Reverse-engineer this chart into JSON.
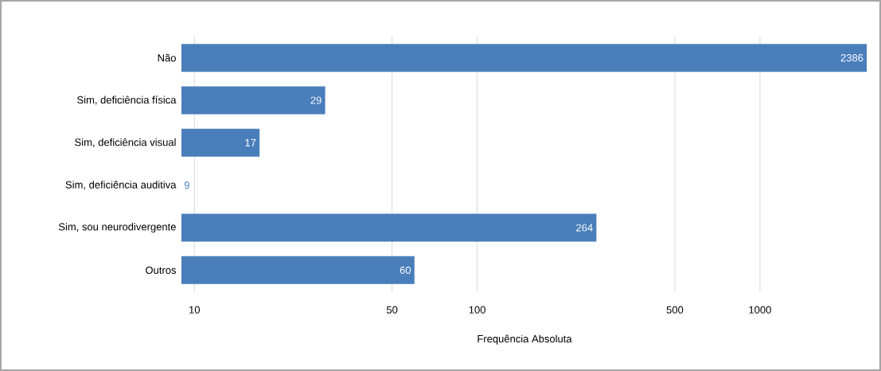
{
  "chart_data": {
    "type": "bar",
    "orientation": "horizontal",
    "log": "x",
    "xlabel": "Frequência Absoluta",
    "categories": [
      "Não",
      "Sim, deficiência física",
      "Sim, deficiência visual",
      "Sim, deficiência auditiva",
      "Sim, sou neurodivergente",
      "Outros"
    ],
    "values": [
      2386,
      29,
      17,
      9,
      264,
      60
    ],
    "color": "#4a7ebb",
    "xlim": [
      9,
      2400
    ],
    "xticks": [
      10,
      50,
      100,
      500,
      1000
    ],
    "grid": "x",
    "data_labels": true
  }
}
